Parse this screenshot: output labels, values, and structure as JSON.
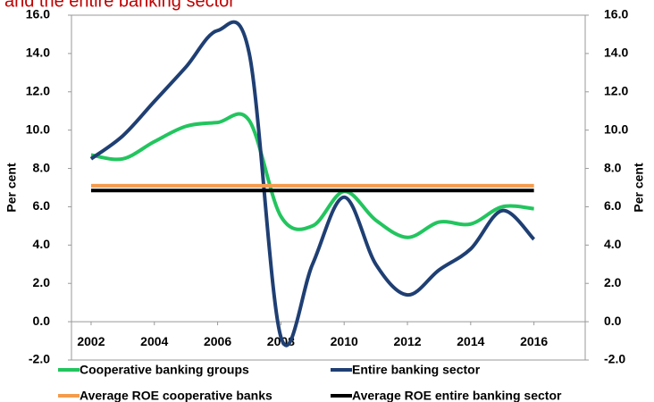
{
  "chart_data": {
    "type": "line",
    "title": "and the entire banking sector",
    "y_label": "Per cent",
    "y2_label": "Per cent",
    "x": [
      2002,
      2003,
      2004,
      2005,
      2006,
      2007,
      2008,
      2009,
      2010,
      2011,
      2012,
      2013,
      2014,
      2015,
      2016
    ],
    "xlim": [
      2001.38,
      2017.62
    ],
    "xticks": [
      2002,
      2004,
      2006,
      2008,
      2010,
      2012,
      2014,
      2016
    ],
    "ylim": [
      -2,
      16
    ],
    "yticks": [
      {
        "value": -2,
        "label": "-2.0"
      },
      {
        "value": 0,
        "label": "0.0"
      },
      {
        "value": 2,
        "label": "2.0"
      },
      {
        "value": 4,
        "label": "4.0"
      },
      {
        "value": 6,
        "label": "6.0"
      },
      {
        "value": 8,
        "label": "8.0"
      },
      {
        "value": 10,
        "label": "10.0"
      },
      {
        "value": 12,
        "label": "12.0"
      },
      {
        "value": 14,
        "label": "14.0"
      },
      {
        "value": 16,
        "label": "16.0"
      }
    ],
    "y2lim": [
      -2,
      16
    ],
    "y2ticks": [
      {
        "value": -2,
        "label": "-2.0"
      },
      {
        "value": 0,
        "label": "0.0"
      },
      {
        "value": 2,
        "label": "2.0"
      },
      {
        "value": 4,
        "label": "4.0"
      },
      {
        "value": 6,
        "label": "6.0"
      },
      {
        "value": 8,
        "label": "8.0"
      },
      {
        "value": 10,
        "label": "10.0"
      },
      {
        "value": 12,
        "label": "12.0"
      },
      {
        "value": 14,
        "label": "14.0"
      },
      {
        "value": 16,
        "label": "16.0"
      }
    ],
    "series": [
      {
        "name": "Cooperative banking groups",
        "color": "#22c55e",
        "smooth": true,
        "values": [
          8.7,
          8.5,
          9.4,
          10.2,
          10.4,
          10.5,
          5.5,
          5.0,
          6.8,
          5.3,
          4.4,
          5.2,
          5.1,
          6.0,
          5.9
        ]
      },
      {
        "name": "Entire banking sector",
        "color": "#1f3f73",
        "smooth": true,
        "values": [
          8.5,
          9.7,
          11.5,
          13.3,
          15.2,
          14.0,
          -0.8,
          3.0,
          6.5,
          3.0,
          1.4,
          2.7,
          3.8,
          5.8,
          4.3
        ]
      },
      {
        "name": "Average ROE cooperative banks",
        "color": "#f59b4c",
        "smooth": false,
        "values": [
          7.1,
          7.1,
          7.1,
          7.1,
          7.1,
          7.1,
          7.1,
          7.1,
          7.1,
          7.1,
          7.1,
          7.1,
          7.1,
          7.1,
          7.1
        ]
      },
      {
        "name": "Average ROE entire banking sector",
        "color": "#000000",
        "smooth": false,
        "values": [
          6.85,
          6.85,
          6.85,
          6.85,
          6.85,
          6.85,
          6.85,
          6.85,
          6.85,
          6.85,
          6.85,
          6.85,
          6.85,
          6.85,
          6.85
        ]
      }
    ]
  }
}
